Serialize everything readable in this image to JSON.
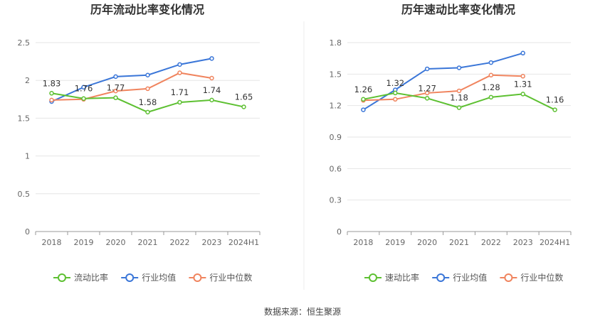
{
  "source": "数据来源：恒生聚源",
  "colors": {
    "company": "#5dc031",
    "average": "#3a76d8",
    "median": "#f0845e",
    "grid": "#e6e6e6",
    "axis": "#999999"
  },
  "chart_data": [
    {
      "type": "line",
      "title": "历年流动比率变化情况",
      "categories": [
        "2018",
        "2019",
        "2020",
        "2021",
        "2022",
        "2023",
        "2024H1"
      ],
      "ylim": [
        0,
        2.5
      ],
      "yticks": [
        "0",
        "0.5",
        "1",
        "1.5",
        "2",
        "2.5"
      ],
      "grid": true,
      "legend_position": "bottom",
      "series": [
        {
          "name": "流动比率",
          "key": "company",
          "values": [
            1.83,
            1.76,
            1.77,
            1.58,
            1.71,
            1.74,
            1.65
          ],
          "labels": [
            "1.83",
            "1.76",
            "1.77",
            "1.58",
            "1.71",
            "1.74",
            "1.65"
          ]
        },
        {
          "name": "行业均值",
          "key": "average",
          "values": [
            1.72,
            1.91,
            2.05,
            2.07,
            2.21,
            2.29,
            null
          ]
        },
        {
          "name": "行业中位数",
          "key": "median",
          "values": [
            1.74,
            1.75,
            1.86,
            1.89,
            2.1,
            2.03,
            null
          ]
        }
      ]
    },
    {
      "type": "line",
      "title": "历年速动比率变化情况",
      "categories": [
        "2018",
        "2019",
        "2020",
        "2021",
        "2022",
        "2023",
        "2024H1"
      ],
      "ylim": [
        0,
        1.8
      ],
      "yticks": [
        "0",
        "0.3",
        "0.6",
        "0.9",
        "1.2",
        "1.5",
        "1.8"
      ],
      "grid": true,
      "legend_position": "bottom",
      "series": [
        {
          "name": "速动比率",
          "key": "company",
          "values": [
            1.26,
            1.32,
            1.27,
            1.18,
            1.28,
            1.31,
            1.16
          ],
          "labels": [
            "1.26",
            "1.32",
            "1.27",
            "1.18",
            "1.28",
            "1.31",
            "1.16"
          ]
        },
        {
          "name": "行业均值",
          "key": "average",
          "values": [
            1.16,
            1.35,
            1.55,
            1.56,
            1.61,
            1.7,
            null
          ]
        },
        {
          "name": "行业中位数",
          "key": "median",
          "values": [
            1.25,
            1.26,
            1.32,
            1.34,
            1.49,
            1.48,
            null
          ]
        }
      ]
    }
  ]
}
